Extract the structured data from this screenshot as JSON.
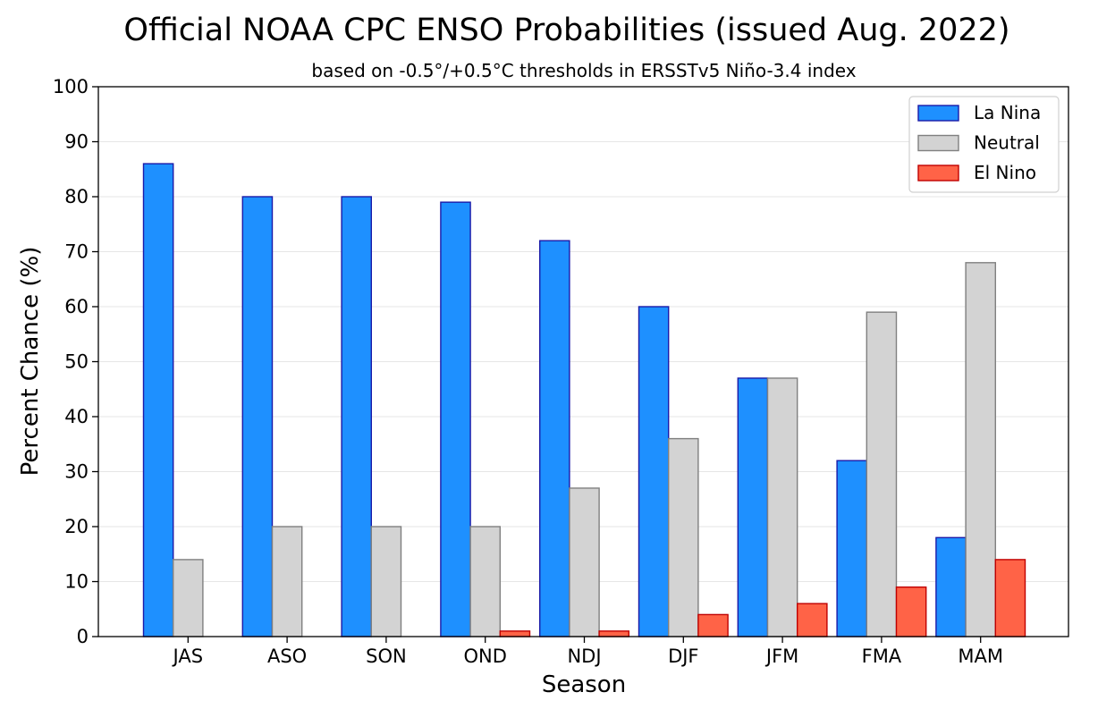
{
  "chart_data": {
    "type": "bar",
    "title": "Official NOAA CPC ENSO Probabilities (issued Aug. 2022)",
    "subtitle": "based on -0.5°/+0.5°C thresholds in ERSSTv5 Niño-3.4 index",
    "xlabel": "Season",
    "ylabel": "Percent Chance (%)",
    "ylim": [
      0,
      100
    ],
    "yticks": [
      0,
      10,
      20,
      30,
      40,
      50,
      60,
      70,
      80,
      90,
      100
    ],
    "grid": true,
    "legend_position": "top-right",
    "categories": [
      "JAS",
      "ASO",
      "SON",
      "OND",
      "NDJ",
      "DJF",
      "JFM",
      "FMA",
      "MAM"
    ],
    "series": [
      {
        "name": "La Nina",
        "color": "#1E90FF",
        "edge": "#1a1aa8",
        "values": [
          86,
          80,
          80,
          79,
          72,
          60,
          47,
          32,
          18
        ]
      },
      {
        "name": "Neutral",
        "color": "#D3D3D3",
        "edge": "#808080",
        "values": [
          14,
          20,
          20,
          20,
          27,
          36,
          47,
          59,
          68
        ]
      },
      {
        "name": "El Nino",
        "color": "#FF6347",
        "edge": "#c00000",
        "values": [
          0,
          0,
          0,
          1,
          1,
          4,
          6,
          9,
          14
        ]
      }
    ]
  }
}
